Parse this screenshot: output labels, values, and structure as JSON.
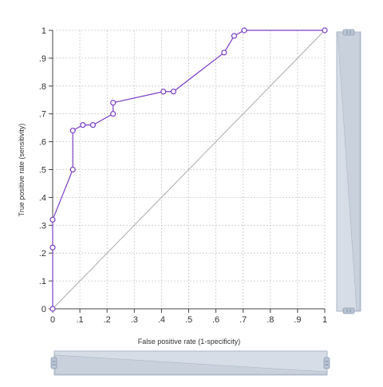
{
  "chart_data": {
    "type": "line",
    "xlabel": "False positive rate (1-specificity)",
    "ylabel": "True positive rate (sensitivity)",
    "xlim": [
      0,
      1
    ],
    "ylim": [
      0,
      1
    ],
    "xticks": [
      "0",
      ".1",
      ".2",
      ".3",
      ".4",
      ".5",
      ".6",
      ".7",
      ".8",
      ".9",
      "1"
    ],
    "yticks": [
      "0",
      ".1",
      ".2",
      ".3",
      ".4",
      ".5",
      ".6",
      ".7",
      ".8",
      ".9",
      "1"
    ],
    "grid": true,
    "legend": "none",
    "series": [
      {
        "x": [
          0,
          0,
          0,
          0.074,
          0.074,
          0.111,
          0.148,
          0.222,
          0.222,
          0.407,
          0.444,
          0.63,
          0.667,
          0.704,
          1
        ],
        "y": [
          0,
          0.22,
          0.32,
          0.5,
          0.64,
          0.66,
          0.66,
          0.7,
          0.74,
          0.78,
          0.78,
          0.92,
          0.98,
          1,
          1
        ],
        "color": "#7b3fc4"
      }
    ],
    "reference_line": {
      "x": [
        0,
        1
      ],
      "y": [
        0,
        1
      ],
      "color": "#aaaaaa"
    }
  },
  "colors": {
    "grid": "#c8c8c8",
    "axis": "#444444",
    "scrollbar_fill": "#d6dde6",
    "scrollbar_edge": "#a9b6c7",
    "scrollbar_handle": "#b9c5d4"
  }
}
